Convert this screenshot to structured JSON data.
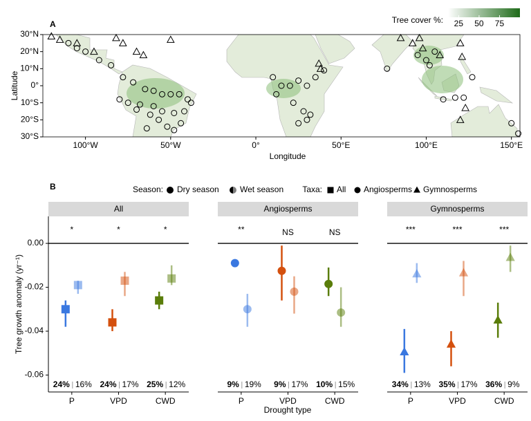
{
  "chart_data": [
    {
      "type": "map-scatter",
      "title": "A",
      "xlabel": "Longitude",
      "ylabel": "Latitude",
      "xlim": [
        -125,
        155
      ],
      "ylim": [
        -30,
        30
      ],
      "xticks": [
        {
          "value": -100,
          "label": "100°W"
        },
        {
          "value": -50,
          "label": "50°W"
        },
        {
          "value": 0,
          "label": "0°"
        },
        {
          "value": 50,
          "label": "50°E"
        },
        {
          "value": 100,
          "label": "100°E"
        },
        {
          "value": 150,
          "label": "150°E"
        }
      ],
      "yticks": [
        {
          "value": -30,
          "label": "30°S"
        },
        {
          "value": -20,
          "label": "20°S"
        },
        {
          "value": -10,
          "label": "10°S"
        },
        {
          "value": 0,
          "label": "0°"
        },
        {
          "value": 10,
          "label": "10°N"
        },
        {
          "value": 20,
          "label": "20°N"
        },
        {
          "value": 30,
          "label": "30°N"
        }
      ],
      "colorbar": {
        "title": "Tree cover %:",
        "clim": [
          12,
          100
        ],
        "ticks": [
          25,
          50,
          75
        ],
        "colors": [
          "#ffffff",
          "#1f6b1a"
        ]
      },
      "series": [
        {
          "marker": "circle",
          "color": "#000000",
          "x": [
            -92,
            -85,
            -78,
            -72,
            -65,
            -60,
            -55,
            -50,
            -45,
            -40,
            -75,
            -68,
            -60,
            -55,
            -48,
            -42,
            -62,
            -57,
            -52,
            -48,
            -64,
            -44,
            -70,
            -38,
            -80,
            10,
            15,
            25,
            30,
            12,
            22,
            28,
            30,
            25,
            32,
            20,
            35,
            40,
            77,
            95,
            100,
            105,
            102,
            110,
            117,
            122,
            127,
            150,
            154,
            -110,
            -100,
            -105
          ],
          "y": [
            15,
            12,
            5,
            2,
            -2,
            -3,
            -5,
            -5,
            -5,
            -8,
            -10,
            -11,
            -12,
            -15,
            -16,
            -15,
            -17,
            -20,
            -24,
            -26,
            -25,
            -22,
            -14,
            -10,
            -8,
            5,
            0,
            3,
            0,
            -5,
            -10,
            -15,
            -20,
            -22,
            -17,
            0,
            5,
            9,
            10,
            18,
            15,
            20,
            12,
            -8,
            -7,
            -7,
            5,
            -22,
            -28,
            25,
            20,
            22
          ]
        },
        {
          "marker": "triangle",
          "color": "#000000",
          "x": [
            -120,
            -115,
            -105,
            -95,
            -82,
            -78,
            -70,
            -66,
            -50,
            37,
            38,
            92,
            98,
            108,
            120,
            121,
            120,
            123,
            96,
            85
          ],
          "y": [
            29,
            27,
            25,
            20,
            28,
            25,
            20,
            18,
            27,
            13,
            10,
            25,
            22,
            18,
            25,
            17,
            -20,
            -13,
            28,
            28
          ]
        }
      ]
    },
    {
      "type": "facet-pointrange",
      "title": "B",
      "xlabel": "Drought type",
      "ylabel": "Tree growth anomaly  (yr⁻¹)",
      "ylim": [
        -0.0677,
        0.0123
      ],
      "yticks": [
        {
          "value": 0,
          "label": "0.00"
        },
        {
          "value": -0.02,
          "label": "-0.02"
        },
        {
          "value": -0.04,
          "label": "-0.04"
        },
        {
          "value": -0.06,
          "label": "-0.06"
        }
      ],
      "hline": 0,
      "colors": [
        "#3a78e0",
        "#d4500e",
        "#5a7d0a"
      ],
      "wet_opacity": 0.5,
      "season_legend": {
        "title": "Season:",
        "labels": [
          "Dry season",
          "Wet season"
        ]
      },
      "taxa_legend": {
        "title": "Taxa:",
        "labels": [
          "All",
          "Angiosperms",
          "Gymnosperms"
        ],
        "markers": [
          "square",
          "circle",
          "triangle"
        ]
      },
      "facets": [
        {
          "title": "All",
          "marker": "square",
          "categories": [
            "P",
            "VPD",
            "CWD"
          ],
          "significance": [
            "*",
            "*",
            "*"
          ],
          "series": [
            {
              "values": [
                -0.03,
                -0.036,
                -0.026
              ],
              "lower": [
                -0.038,
                -0.04,
                -0.03
              ],
              "upper": [
                -0.026,
                -0.03,
                -0.022
              ],
              "pct": [
                24,
                24,
                25
              ],
              "pct_labels": [
                "24%",
                "24%",
                "25%"
              ]
            },
            {
              "values": [
                -0.019,
                -0.017,
                -0.016
              ],
              "lower": [
                -0.023,
                -0.024,
                -0.019
              ],
              "upper": [
                -0.017,
                -0.013,
                -0.01
              ],
              "pct": [
                16,
                17,
                12
              ],
              "pct_labels": [
                "16%",
                "17%",
                "12%"
              ]
            }
          ]
        },
        {
          "title": "Angiosperms",
          "marker": "circle",
          "categories": [
            "P",
            "VPD",
            "CWD"
          ],
          "significance": [
            "**",
            "NS",
            "NS"
          ],
          "series": [
            {
              "values": [
                -0.009,
                -0.0125,
                -0.0185
              ],
              "lower": [
                -0.0095,
                -0.026,
                -0.024
              ],
              "upper": [
                -0.0085,
                -0.001,
                -0.011
              ],
              "pct": [
                9,
                9,
                10
              ],
              "pct_labels": [
                "9%",
                "9%",
                "10%"
              ]
            },
            {
              "values": [
                -0.03,
                -0.022,
                -0.0315
              ],
              "lower": [
                -0.038,
                -0.032,
                -0.038
              ],
              "upper": [
                -0.023,
                -0.015,
                -0.02
              ],
              "pct": [
                19,
                17,
                15
              ],
              "pct_labels": [
                "19%",
                "17%",
                "15%"
              ]
            }
          ]
        },
        {
          "title": "Gymnosperms",
          "marker": "triangle",
          "categories": [
            "P",
            "VPD",
            "CWD"
          ],
          "significance": [
            "***",
            "***",
            "***"
          ],
          "series": [
            {
              "values": [
                -0.0495,
                -0.046,
                -0.035
              ],
              "lower": [
                -0.059,
                -0.056,
                -0.043
              ],
              "upper": [
                -0.039,
                -0.04,
                -0.027
              ],
              "pct": [
                34,
                35,
                36
              ],
              "pct_labels": [
                "34%",
                "35%",
                "36%"
              ]
            },
            {
              "values": [
                -0.014,
                -0.0135,
                -0.0065
              ],
              "lower": [
                -0.018,
                -0.024,
                -0.013
              ],
              "upper": [
                -0.009,
                -0.008,
                -0.001
              ],
              "pct": [
                13,
                17,
                9
              ],
              "pct_labels": [
                "13%",
                "17%",
                "9%"
              ]
            }
          ]
        }
      ]
    }
  ]
}
